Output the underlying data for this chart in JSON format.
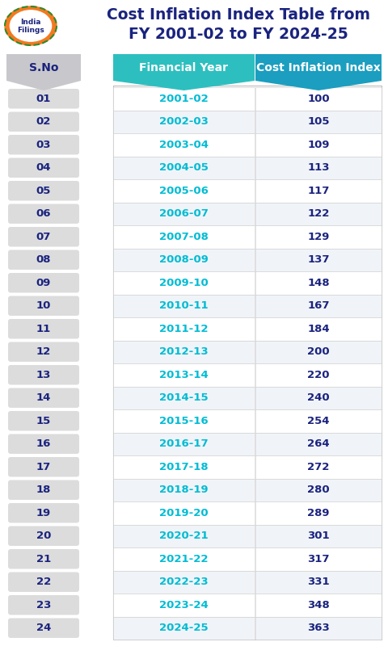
{
  "title_line1": "Cost Inflation Index Table from",
  "title_line2": "FY 2001-02 to FY 2024-25",
  "title_color": "#1a237e",
  "col_header_fy": "Financial Year",
  "col_header_cii": "Cost Inflation Index",
  "col_sno": "S.No",
  "header_fy_color": "#2dbfbf",
  "header_cii_color": "#1b9ec0",
  "header_text_color": "#ffffff",
  "sno_header_bg": "#c8c8cc",
  "sno_header_text": "#1a237e",
  "row_bg_odd": "#ffffff",
  "row_bg_even": "#f0f4f8",
  "sno_bg": "#dcdcdc",
  "sno_text_color": "#1a237e",
  "fy_text_color": "#00bcd4",
  "cii_text_color": "#1a237e",
  "border_color": "#cccccc",
  "bg_color": "#ffffff",
  "rows": [
    [
      "01",
      "2001-02",
      "100"
    ],
    [
      "02",
      "2002-03",
      "105"
    ],
    [
      "03",
      "2003-04",
      "109"
    ],
    [
      "04",
      "2004-05",
      "113"
    ],
    [
      "05",
      "2005-06",
      "117"
    ],
    [
      "06",
      "2006-07",
      "122"
    ],
    [
      "07",
      "2007-08",
      "129"
    ],
    [
      "08",
      "2008-09",
      "137"
    ],
    [
      "09",
      "2009-10",
      "148"
    ],
    [
      "10",
      "2010-11",
      "167"
    ],
    [
      "11",
      "2011-12",
      "184"
    ],
    [
      "12",
      "2012-13",
      "200"
    ],
    [
      "13",
      "2013-14",
      "220"
    ],
    [
      "14",
      "2014-15",
      "240"
    ],
    [
      "15",
      "2015-16",
      "254"
    ],
    [
      "16",
      "2016-17",
      "264"
    ],
    [
      "17",
      "2017-18",
      "272"
    ],
    [
      "18",
      "2018-19",
      "280"
    ],
    [
      "19",
      "2019-20",
      "289"
    ],
    [
      "20",
      "2020-21",
      "301"
    ],
    [
      "21",
      "2021-22",
      "317"
    ],
    [
      "22",
      "2022-23",
      "331"
    ],
    [
      "23",
      "2023-24",
      "348"
    ],
    [
      "24",
      "2024-25",
      "363"
    ]
  ]
}
